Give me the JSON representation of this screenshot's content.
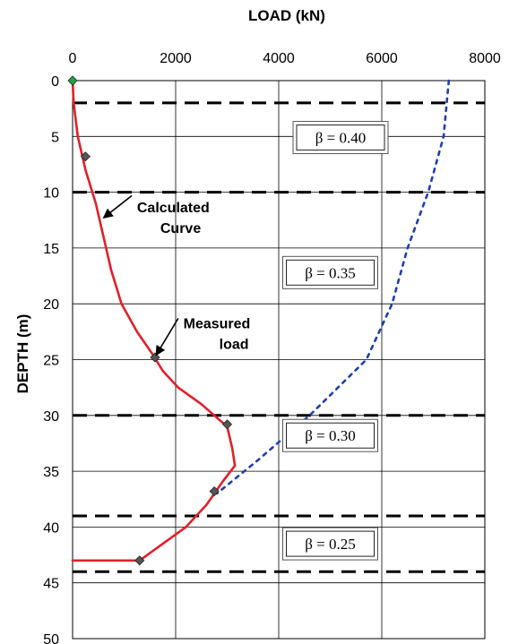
{
  "chart_data": {
    "type": "line",
    "xlabel": "LOAD  (kN)",
    "ylabel": "DEPTH  (m)",
    "xlim": [
      0,
      8000
    ],
    "ylim": [
      0,
      50
    ],
    "x_ticks": [
      "0",
      "2000",
      "4000",
      "6000",
      "8000"
    ],
    "y_ticks": [
      "0",
      "5",
      "10",
      "15",
      "20",
      "25",
      "30",
      "35",
      "40",
      "45",
      "50"
    ],
    "y_inverted": true,
    "x_axis_position": "top",
    "grid": true,
    "series": [
      {
        "kind": "calculated",
        "style": "solid-red",
        "color": "#e0202a",
        "points": [
          {
            "x": 0,
            "y": 0
          },
          {
            "x": 20,
            "y": 2
          },
          {
            "x": 100,
            "y": 5
          },
          {
            "x": 250,
            "y": 8
          },
          {
            "x": 450,
            "y": 11
          },
          {
            "x": 600,
            "y": 14
          },
          {
            "x": 750,
            "y": 17
          },
          {
            "x": 950,
            "y": 20
          },
          {
            "x": 1250,
            "y": 22.5
          },
          {
            "x": 1550,
            "y": 24.5
          },
          {
            "x": 1750,
            "y": 26
          },
          {
            "x": 2050,
            "y": 27.5
          },
          {
            "x": 2500,
            "y": 29
          },
          {
            "x": 3000,
            "y": 31
          },
          {
            "x": 3100,
            "y": 33
          },
          {
            "x": 3150,
            "y": 34.5
          },
          {
            "x": 2900,
            "y": 36
          },
          {
            "x": 2600,
            "y": 38
          },
          {
            "x": 2200,
            "y": 40
          },
          {
            "x": 1600,
            "y": 42
          },
          {
            "x": 1300,
            "y": 43
          },
          {
            "x": 0,
            "y": 43
          }
        ]
      },
      {
        "kind": "dotted",
        "style": "dotted-blue",
        "color": "#1f3fae",
        "points": [
          {
            "x": 7300,
            "y": 0
          },
          {
            "x": 7200,
            "y": 5
          },
          {
            "x": 6900,
            "y": 10
          },
          {
            "x": 6500,
            "y": 15
          },
          {
            "x": 6200,
            "y": 20
          },
          {
            "x": 5700,
            "y": 25
          },
          {
            "x": 4600,
            "y": 30
          },
          {
            "x": 3600,
            "y": 34
          },
          {
            "x": 2800,
            "y": 37
          }
        ]
      }
    ],
    "measured_points": [
      {
        "x": 0,
        "y": 0,
        "color": "#1fa34a"
      },
      {
        "x": 250,
        "y": 6.8,
        "color": "#555555"
      },
      {
        "x": 1600,
        "y": 24.8,
        "color": "#555555"
      },
      {
        "x": 3000,
        "y": 30.8,
        "color": "#555555"
      },
      {
        "x": 2750,
        "y": 36.8,
        "color": "#555555"
      },
      {
        "x": 1300,
        "y": 43,
        "color": "#555555"
      }
    ],
    "layer_boundaries": [
      2,
      10,
      30,
      39,
      44
    ],
    "beta_labels": [
      {
        "text": "β = 0.40",
        "x": 5200,
        "y": 5.1
      },
      {
        "text": "β = 0.35",
        "x": 5000,
        "y": 17.2
      },
      {
        "text": "β = 0.30",
        "x": 5000,
        "y": 31.8
      },
      {
        "text": "β = 0.25",
        "x": 5000,
        "y": 41.5
      }
    ],
    "annotations": [
      {
        "lines": [
          "Calculated",
          "Curve"
        ],
        "x": 1250,
        "y": 11.8,
        "arrow_to": {
          "x": 600,
          "y": 12.3
        },
        "arrow_from": {
          "x": 1150,
          "y": 10.3
        }
      },
      {
        "lines": [
          "Measured",
          "load"
        ],
        "x": 2150,
        "y": 22.2,
        "arrow_to": {
          "x": 1620,
          "y": 24.6
        },
        "arrow_from": {
          "x": 2050,
          "y": 21.3
        }
      }
    ]
  }
}
